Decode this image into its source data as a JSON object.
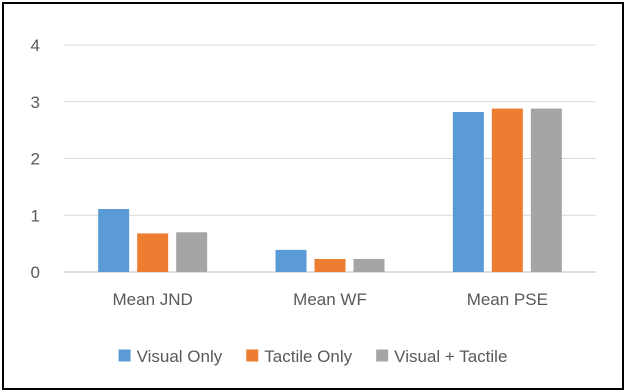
{
  "chart_data": {
    "type": "bar",
    "categories": [
      "Mean JND",
      "Mean WF",
      "Mean PSE"
    ],
    "series": [
      {
        "name": "Visual Only",
        "color": "#5B9BD5",
        "values": [
          1.11,
          0.39,
          2.82
        ]
      },
      {
        "name": "Tactile Only",
        "color": "#ED7D31",
        "values": [
          0.68,
          0.23,
          2.88
        ]
      },
      {
        "name": "Visual + Tactile",
        "color": "#A5A5A5",
        "values": [
          0.7,
          0.23,
          2.88
        ]
      }
    ],
    "ylim": [
      0,
      4
    ],
    "yticks": [
      0,
      1,
      2,
      3,
      4
    ],
    "grid": true,
    "legend_position": "bottom",
    "gridline_color": "#D9D9D9",
    "axis_color": "#BFBFBF",
    "text_color": "#595959"
  }
}
